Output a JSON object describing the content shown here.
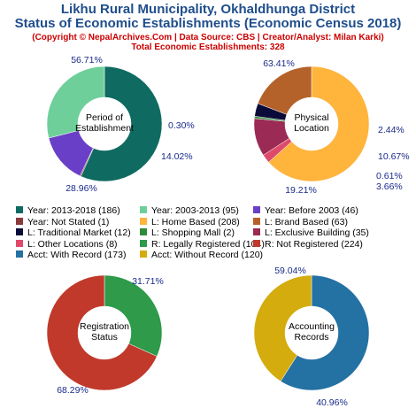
{
  "header": {
    "title_line1": "Likhu Rural Municipality, Okhaldhunga District",
    "title_line2": "Status of Economic Establishments (Economic Census 2018)",
    "credit": "(Copyright © NepalArchives.Com | Data Source: CBS | Creator/Analyst: Milan Karki)",
    "total": "Total Economic Establishments: 328"
  },
  "chart_data": [
    {
      "type": "pie",
      "title": "Period of Establishment",
      "center_lines": [
        "Period of",
        "Establishment"
      ],
      "slices": [
        {
          "label": "Year: 2013-2018",
          "value": 186,
          "percent": "56.71%",
          "color": "#0f6b61"
        },
        {
          "label": "Year: Not Stated",
          "value": 1,
          "percent": "0.30%",
          "color": "#8b3a3a"
        },
        {
          "label": "Year: Before 2003",
          "value": 46,
          "percent": "14.02%",
          "color": "#6a3fc8"
        },
        {
          "label": "Year: 2003-2013",
          "value": 95,
          "percent": "28.96%",
          "color": "#6fcf9b"
        }
      ]
    },
    {
      "type": "pie",
      "title": "Physical Location",
      "center_lines": [
        "Physical",
        "Location"
      ],
      "slices": [
        {
          "label": "L: Home Based",
          "value": 208,
          "percent": "63.41%",
          "color": "#ffb43c"
        },
        {
          "label": "L: Other Locations",
          "value": 8,
          "percent": "2.44%",
          "color": "#e04a6a"
        },
        {
          "label": "L: Exclusive Building",
          "value": 35,
          "percent": "10.67%",
          "color": "#9b2a54"
        },
        {
          "label": "L: Shopping Mall",
          "value": 2,
          "percent": "0.61%",
          "color": "#2e8b3a"
        },
        {
          "label": "L: Traditional Market",
          "value": 12,
          "percent": "3.66%",
          "color": "#0b0b3a"
        },
        {
          "label": "L: Brand Based",
          "value": 63,
          "percent": "19.21%",
          "color": "#b5622a"
        }
      ]
    },
    {
      "type": "pie",
      "title": "Registration Status",
      "center_lines": [
        "Registration",
        "Status"
      ],
      "slices": [
        {
          "label": "R: Legally Registered",
          "value": 104,
          "percent": "31.71%",
          "color": "#2e9a4a"
        },
        {
          "label": "R: Not Registered",
          "value": 224,
          "percent": "68.29%",
          "color": "#c0392b"
        }
      ]
    },
    {
      "type": "pie",
      "title": "Accounting Records",
      "center_lines": [
        "Accounting",
        "Records"
      ],
      "slices": [
        {
          "label": "Acct: With Record",
          "value": 173,
          "percent": "59.04%",
          "color": "#2471a3"
        },
        {
          "label": "Acct: Without Record",
          "value": 120,
          "percent": "40.96%",
          "color": "#d4ac0d"
        }
      ]
    }
  ],
  "legend": [
    {
      "text": "Year: 2013-2018 (186)",
      "color": "#0f6b61"
    },
    {
      "text": "Year: 2003-2013 (95)",
      "color": "#6fcf9b"
    },
    {
      "text": "Year: Before 2003 (46)",
      "color": "#6a3fc8"
    },
    {
      "text": "Year: Not Stated (1)",
      "color": "#8b3a3a"
    },
    {
      "text": "L: Home Based (208)",
      "color": "#ffb43c"
    },
    {
      "text": "L: Brand Based (63)",
      "color": "#b5622a"
    },
    {
      "text": "L: Traditional Market (12)",
      "color": "#0b0b3a"
    },
    {
      "text": "L: Shopping Mall (2)",
      "color": "#2e8b3a"
    },
    {
      "text": "L: Exclusive Building (35)",
      "color": "#9b2a54"
    },
    {
      "text": "L: Other Locations (8)",
      "color": "#e04a6a"
    },
    {
      "text": "R: Legally Registered (104)",
      "color": "#2e9a4a"
    },
    {
      "text": "R: Not Registered (224)",
      "color": "#c0392b"
    },
    {
      "text": "Acct: With Record (173)",
      "color": "#2471a3"
    },
    {
      "text": "Acct: Without Record (120)",
      "color": "#d4ac0d"
    }
  ]
}
